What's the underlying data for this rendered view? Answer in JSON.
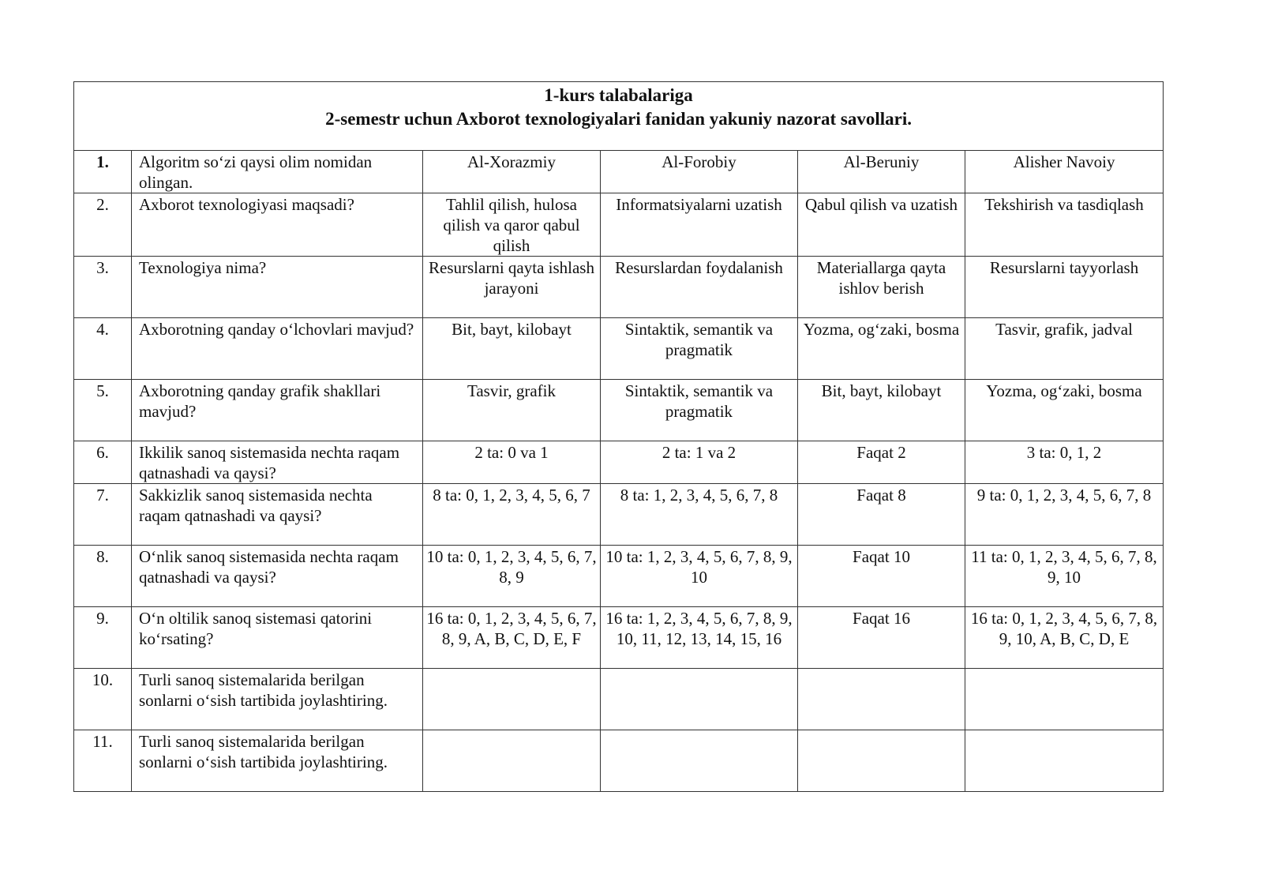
{
  "document": {
    "title_line1": "1-kurs talabalariga",
    "title_line2": "2-semestr uchun Axborot texnologiyalari fanidan yakuniy nazorat savollari.",
    "rows": [
      {
        "num": "1.",
        "question": "Algoritm so‘zi qaysi olim nomidan olingan.",
        "answers": [
          "Al-Xorazmiy",
          "Al-Forobiy",
          "Al-Beruniy",
          "Alisher Navoiy"
        ]
      },
      {
        "num": "2.",
        "question": "Axborot texnologiyasi maqsadi?",
        "answers": [
          "Tahlil qilish, hulosa qilish va qaror qabul qilish",
          "Informatsiyalarni uzatish",
          "Qabul qilish va uzatish",
          "Tekshirish va tasdiqlash"
        ]
      },
      {
        "num": "3.",
        "question": "Texnologiya nima?",
        "answers": [
          "Resurslarni qayta ishlash jarayoni",
          "Resurslardan foydalanish",
          "Materiallarga qayta ishlov berish",
          "Resurslarni tayyorlash"
        ]
      },
      {
        "num": "4.",
        "question": "Axborotning qanday o‘lchovlari mavjud?",
        "answers": [
          "Bit, bayt, kilobayt",
          "Sintaktik, semantik va pragmatik",
          "Yozma, og‘zaki, bosma",
          "Tasvir, grafik, jadval"
        ]
      },
      {
        "num": "5.",
        "question": "Axborotning qanday grafik shakllari mavjud?",
        "answers": [
          "Tasvir, grafik",
          "Sintaktik, semantik va pragmatik",
          "Bit, bayt, kilobayt",
          "Yozma, og‘zaki, bosma"
        ]
      },
      {
        "num": "6.",
        "question": "Ikkilik sanoq sistemasida nechta raqam qatnashadi va qaysi?",
        "answers": [
          "2 ta: 0 va 1",
          "2 ta: 1 va 2",
          "Faqat 2",
          "3 ta: 0, 1, 2"
        ]
      },
      {
        "num": "7.",
        "question": "Sakkizlik sanoq sistemasida nechta raqam qatnashadi va qaysi?",
        "answers": [
          "8 ta: 0, 1, 2, 3, 4, 5, 6, 7",
          "8 ta: 1, 2, 3, 4, 5, 6, 7, 8",
          "Faqat 8",
          "9 ta: 0, 1, 2, 3, 4, 5, 6, 7, 8"
        ]
      },
      {
        "num": "8.",
        "question": "O‘nlik sanoq sistemasida nechta raqam qatnashadi va qaysi?",
        "answers": [
          "10 ta: 0, 1, 2, 3, 4, 5, 6, 7, 8, 9",
          "10 ta: 1, 2, 3, 4, 5, 6, 7, 8, 9, 10",
          "Faqat 10",
          "11 ta: 0, 1, 2, 3, 4, 5, 6, 7, 8, 9, 10"
        ]
      },
      {
        "num": "9.",
        "question": "O‘n oltilik sanoq sistemasi qatorini ko‘rsating?",
        "answers": [
          "16 ta: 0, 1, 2, 3, 4, 5, 6, 7, 8, 9, A, B, C, D, E, F",
          "16 ta: 1, 2, 3, 4, 5, 6, 7, 8, 9, 10, 11, 12, 13, 14, 15, 16",
          "Faqat 16",
          "16 ta: 0, 1, 2, 3, 4, 5, 6, 7, 8, 9, 10, A, B, C, D, E"
        ]
      },
      {
        "num": "10.",
        "question": "Turli sanoq sistemalarida berilgan sonlarni o‘sish tartibida joylashtiring.",
        "answers": [
          "",
          "",
          "",
          ""
        ]
      },
      {
        "num": "11.",
        "question": "Turli sanoq sistemalarida berilgan sonlarni o‘sish tartibida joylashtiring.",
        "answers": [
          "",
          "",
          "",
          ""
        ]
      }
    ]
  }
}
